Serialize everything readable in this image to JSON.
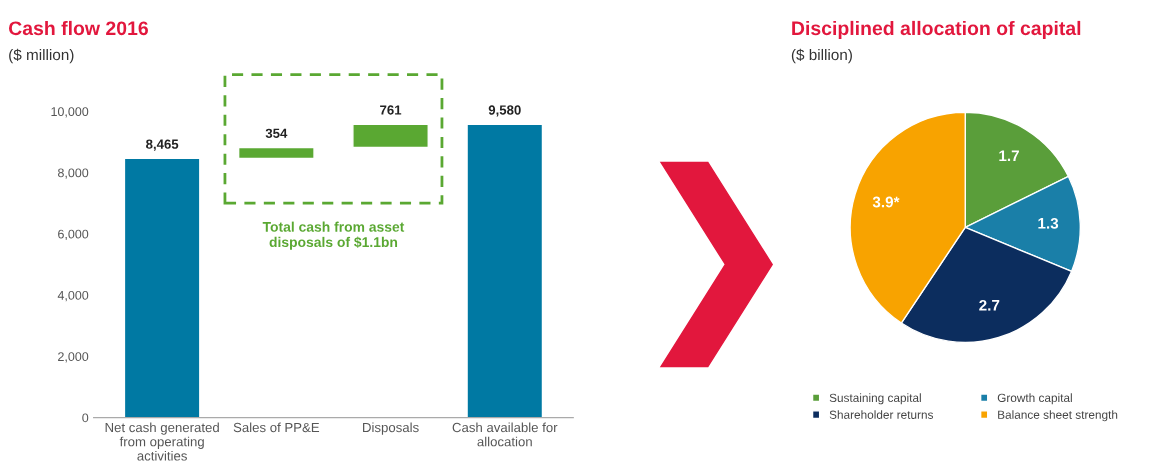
{
  "chart_data": [
    {
      "type": "bar",
      "title": "Cash flow 2016",
      "subtitle": "($ million)",
      "categories": [
        "Net cash generated\nfrom operating\nactivities",
        "Sales of PP&E",
        "Disposals",
        "Cash available for\nallocation"
      ],
      "values": [
        8465,
        354,
        761,
        9580
      ],
      "base": [
        0,
        8465,
        8819,
        0
      ],
      "colors": [
        "#0079a3",
        "#5aa832",
        "#5aa832",
        "#0079a3"
      ],
      "value_labels": [
        "8,465",
        "354",
        "761",
        "9,580"
      ],
      "ylim": [
        0,
        10000
      ],
      "yticks": [
        0,
        {
          "value": 2000,
          "label": "2,000"
        },
        {
          "value": 4000,
          "label": "4,000"
        },
        {
          "value": 6000,
          "label": "6,000"
        },
        {
          "value": 8000,
          "label": "8,000"
        },
        {
          "value": 10000,
          "label": "10,000"
        }
      ],
      "grid": false,
      "annotations": [
        "Total cash from asset\ndisposals of $1.1bn"
      ]
    },
    {
      "type": "pie",
      "title": "Disciplined allocation of capital",
      "subtitle": "($ billion)",
      "categories": [
        "Sustaining capital",
        "Growth capital",
        "Shareholder returns",
        "Balance sheet strength"
      ],
      "values": [
        1.7,
        1.3,
        2.7,
        3.9
      ],
      "colors": [
        "#5a9e3a",
        "#1a7fa8",
        "#0c2d5e",
        "#f8a300"
      ],
      "value_labels": [
        "1.7",
        "1.3",
        "2.7",
        "3.9*"
      ],
      "legend": "bottom"
    }
  ]
}
